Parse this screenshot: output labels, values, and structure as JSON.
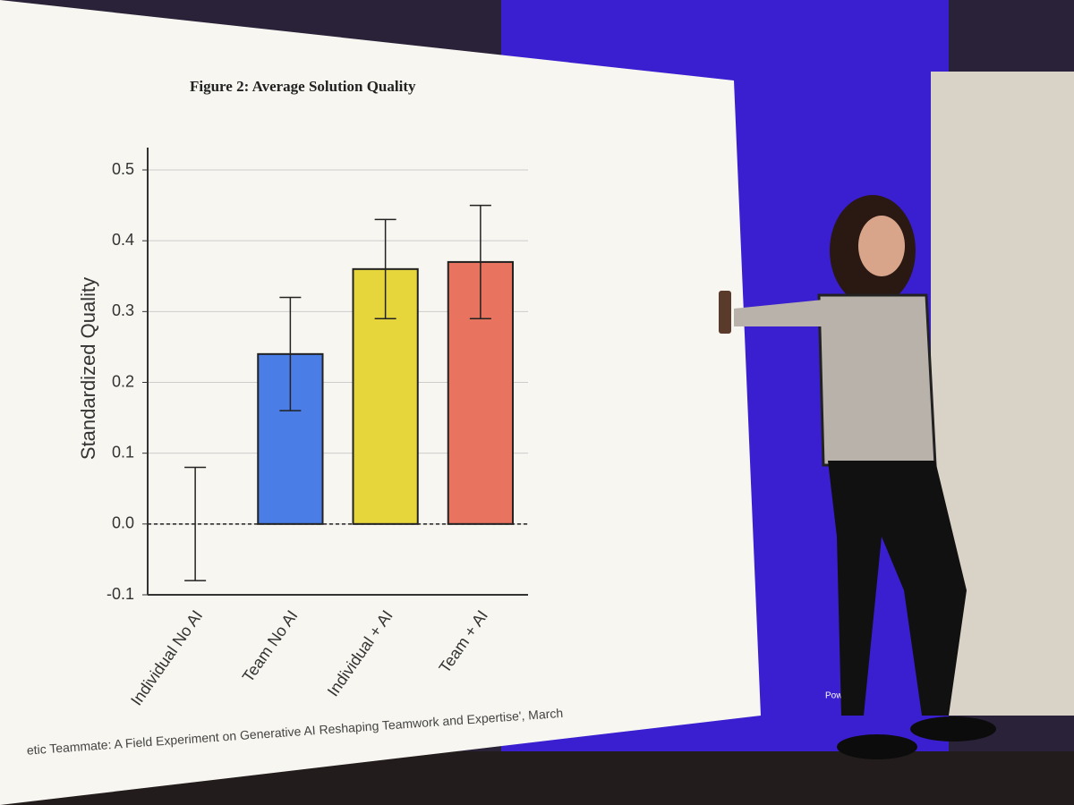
{
  "chart_data": {
    "type": "bar",
    "title": "Figure 2: Average Solution Quality",
    "y_label": "Standardized Quality",
    "categories": [
      "Individual No AI",
      "Team No AI",
      "Individual + AI",
      "Team + AI"
    ],
    "values": [
      0.0,
      0.24,
      0.36,
      0.37
    ],
    "errors": [
      0.08,
      0.08,
      0.07,
      0.08
    ],
    "colors": [
      "none",
      "#4a7de6",
      "#e6d63c",
      "#e8735e"
    ],
    "ylim": [
      -0.1,
      0.5
    ],
    "yticks": [
      -0.1,
      {
        "value": 0,
        "label": "0.0"
      },
      0.1,
      0.2,
      0.3,
      0.4,
      0.5
    ],
    "grid": true,
    "zero_line": "dashed",
    "source": "etic Teammate: A Field Experiment on Generative AI Reshaping Teamwork and Expertise', March"
  },
  "stage": {
    "sponsor_label": "Powered"
  }
}
